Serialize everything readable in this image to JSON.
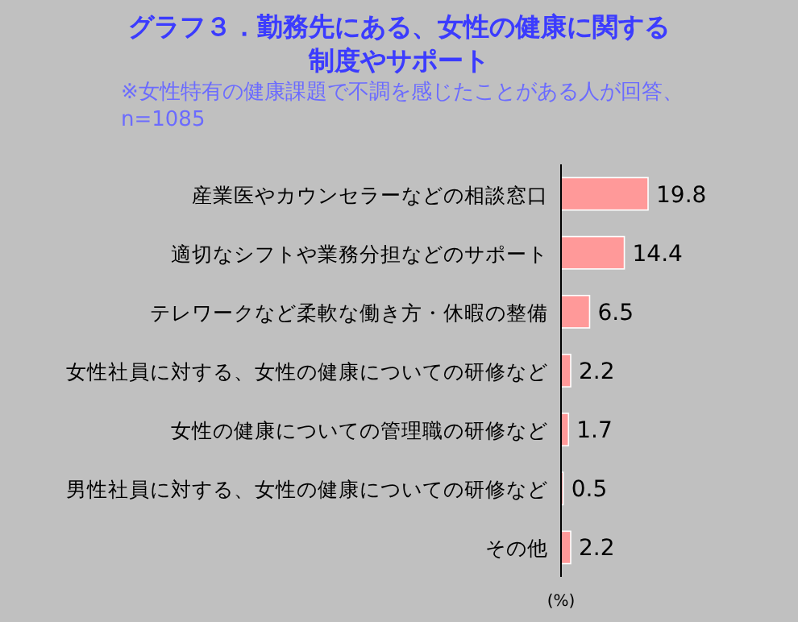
{
  "chart_data": {
    "type": "bar",
    "orientation": "horizontal",
    "title": "グラフ３．勤務先にある、女性の健康に関する制度やサポート",
    "subtitle": "※女性特有の健康課題で不調を感じたことがある人が回答、n=1085",
    "xlabel": "(%)",
    "categories": [
      "産業医やカウンセラーなどの相談窓口",
      "適切なシフトや業務分担などのサポート",
      "テレワークなど柔軟な働き方・休暇の整備",
      "女性社員に対する、女性の健康についての研修など",
      "女性の健康についての管理職の研修など",
      "男性社員に対する、女性の健康についての研修など",
      "その他"
    ],
    "values": [
      19.8,
      14.4,
      6.5,
      2.2,
      1.7,
      0.5,
      2.2
    ],
    "color": "#ff9999",
    "data_labels": true
  }
}
